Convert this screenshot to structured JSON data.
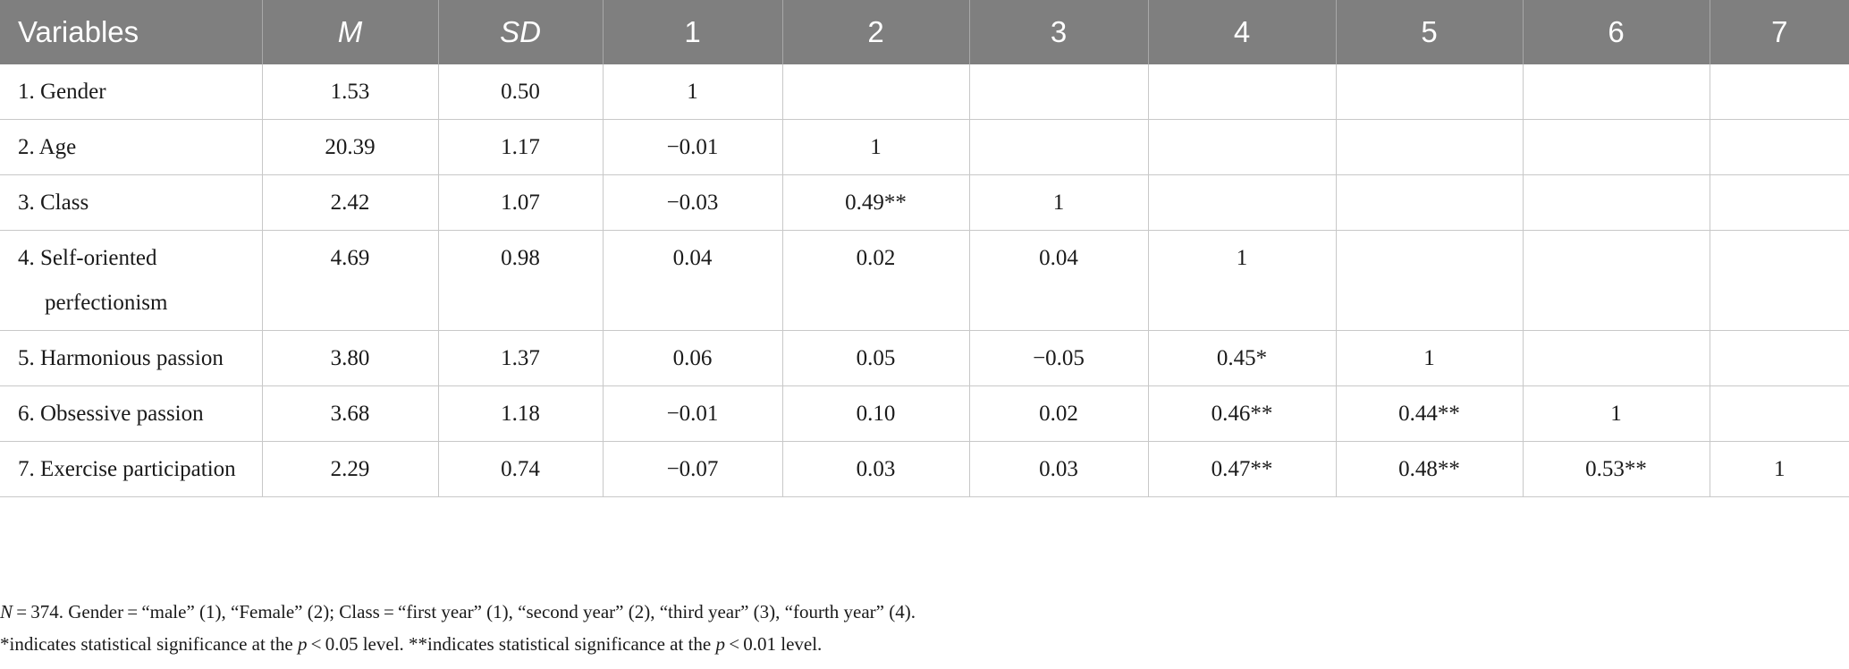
{
  "table": {
    "headers": [
      "Variables",
      "M",
      "SD",
      "1",
      "2",
      "3",
      "4",
      "5",
      "6",
      "7"
    ],
    "rows": [
      {
        "label": "1. Gender",
        "m": "1.53",
        "sd": "0.50",
        "c": [
          "1",
          "",
          "",
          "",
          "",
          "",
          ""
        ]
      },
      {
        "label": "2. Age",
        "m": "20.39",
        "sd": "1.17",
        "c": [
          "−0.01",
          "1",
          "",
          "",
          "",
          "",
          ""
        ]
      },
      {
        "label": "3. Class",
        "m": "2.42",
        "sd": "1.07",
        "c": [
          "−0.03",
          "0.49**",
          "1",
          "",
          "",
          "",
          ""
        ]
      },
      {
        "label": "4. Self-oriented perfectionism",
        "m": "4.69",
        "sd": "0.98",
        "c": [
          "0.04",
          "0.02",
          "0.04",
          "1",
          "",
          "",
          ""
        ]
      },
      {
        "label": "5. Harmonious passion",
        "m": "3.80",
        "sd": "1.37",
        "c": [
          "0.06",
          "0.05",
          "−0.05",
          "0.45*",
          "1",
          "",
          ""
        ]
      },
      {
        "label": "6. Obsessive passion",
        "m": "3.68",
        "sd": "1.18",
        "c": [
          "−0.01",
          "0.10",
          "0.02",
          "0.46**",
          "0.44**",
          "1",
          ""
        ]
      },
      {
        "label": "7. Exercise participation",
        "m": "2.29",
        "sd": "0.74",
        "c": [
          "−0.07",
          "0.03",
          "0.03",
          "0.47**",
          "0.48**",
          "0.53**",
          "1"
        ]
      }
    ]
  },
  "notes": {
    "line1_n": "N",
    "line1_rest": " = 374. Gender = “male” (1), “Female” (2); Class = “first year” (1), “second year” (2), “third year” (3), “fourth year” (4).",
    "line2_a": "*indicates statistical significance at the ",
    "line2_p1": "p",
    "line2_b": " < 0.05 level. **indicates statistical significance at the ",
    "line2_p2": "p",
    "line2_c": " < 0.01 level."
  }
}
